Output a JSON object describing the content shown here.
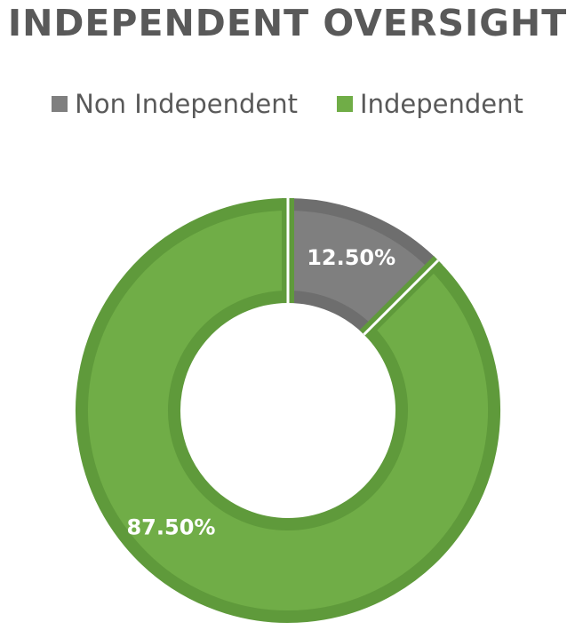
{
  "chart_data": {
    "type": "pie",
    "variant": "donut",
    "title": "INDEPENDENT OVERSIGHT",
    "legend_position": "top",
    "categories": [
      "Non Independent",
      "Independent"
    ],
    "values": [
      12.5,
      87.5
    ],
    "data_labels": [
      "12.50%",
      "87.50%"
    ],
    "colors": [
      "#7f7f7f",
      "#70ad47"
    ],
    "border_colors": [
      "#6e6e6e",
      "#5f9a3b"
    ]
  }
}
